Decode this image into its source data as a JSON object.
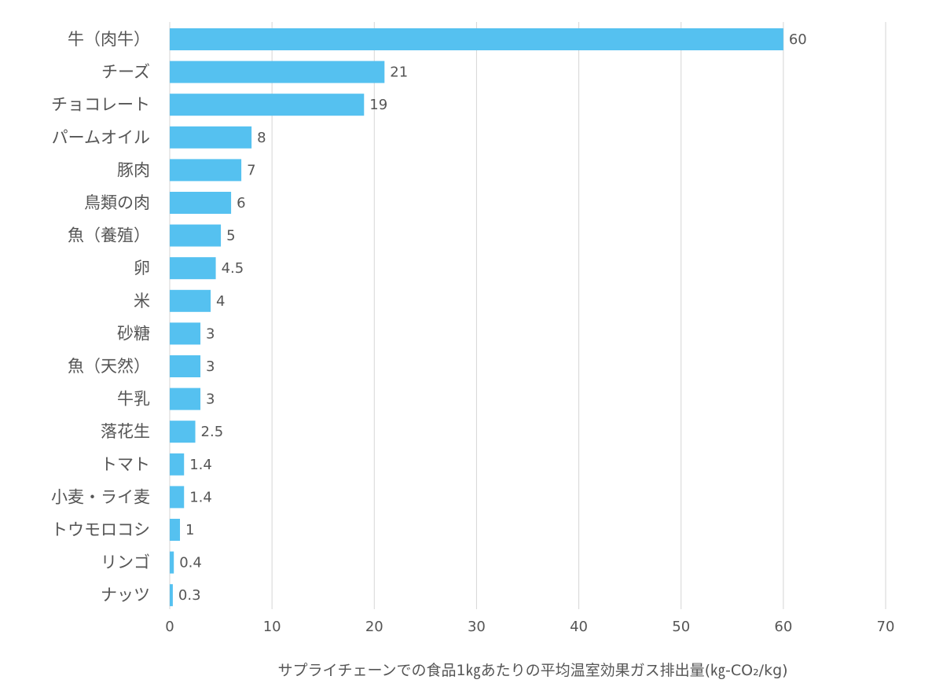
{
  "chart_data": {
    "type": "bar",
    "orientation": "horizontal",
    "categories": [
      "牛（肉牛）",
      "チーズ",
      "チョコレート",
      "パームオイル",
      "豚肉",
      "鳥類の肉",
      "魚（養殖）",
      "卵",
      "米",
      "砂糖",
      "魚（天然）",
      "牛乳",
      "落花生",
      "トマト",
      "小麦・ライ麦",
      "トウモロコシ",
      "リンゴ",
      "ナッツ"
    ],
    "values": [
      60,
      21,
      19,
      8,
      7,
      6,
      5,
      4.5,
      4,
      3,
      3,
      3,
      2.5,
      1.4,
      1.4,
      1,
      0.4,
      0.3
    ],
    "value_labels": [
      "60",
      "21",
      "19",
      "8",
      "7",
      "6",
      "5",
      "4.5",
      "4",
      "3",
      "3",
      "3",
      "2.5",
      "1.4",
      "1.4",
      "1",
      "0.4",
      "0.3"
    ],
    "xlabel": "サプライチェーンでの食品1㎏あたりの平均温室効果ガス排出量(㎏-CO₂/kg)",
    "ylabel": "",
    "xlim": [
      0,
      70
    ],
    "xticks": [
      0,
      10,
      20,
      30,
      40,
      50,
      60,
      70
    ],
    "grid": "vertical",
    "bar_color": "#55c1f0",
    "text_color": "#555555",
    "grid_color": "#d6d6d6"
  }
}
